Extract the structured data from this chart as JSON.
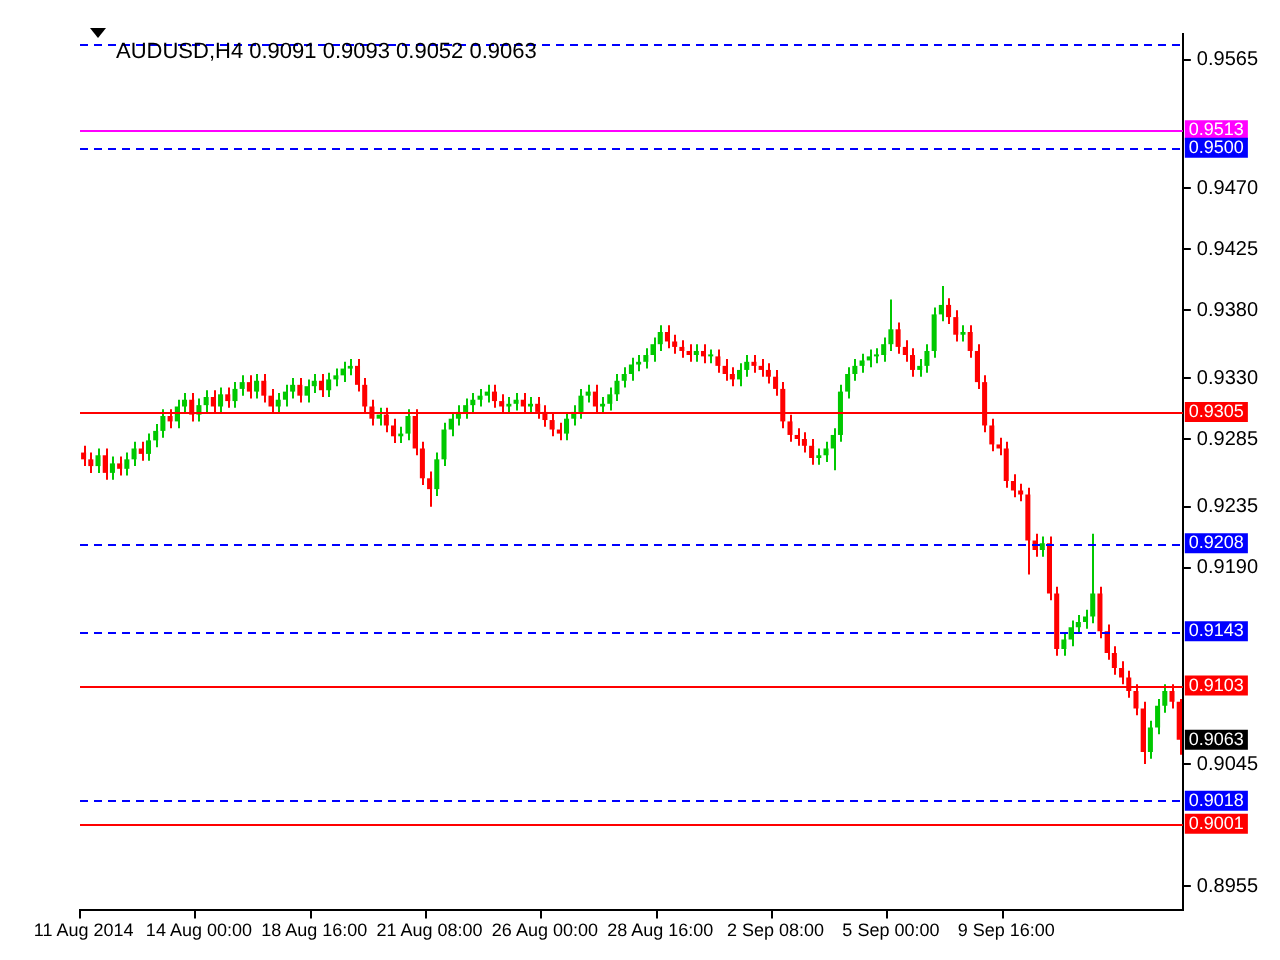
{
  "chart_data": {
    "type": "candlestick",
    "title": "AUDUSD,H4 0.9091 0.9093 0.9052 0.9063",
    "categories": [
      "11 Aug 2014",
      null,
      null,
      null,
      null,
      null,
      null,
      null,
      null,
      null,
      null,
      null,
      null,
      null,
      null,
      null,
      "14 Aug 00:00",
      null,
      null,
      null,
      null,
      null,
      null,
      null,
      null,
      null,
      null,
      null,
      null,
      null,
      null,
      null,
      "18 Aug 16:00",
      null,
      null,
      null,
      null,
      null,
      null,
      null,
      null,
      null,
      null,
      null,
      null,
      null,
      null,
      null,
      "21 Aug 08:00",
      null,
      null,
      null,
      null,
      null,
      null,
      null,
      null,
      null,
      null,
      null,
      null,
      null,
      null,
      null,
      "26 Aug 00:00",
      null,
      null,
      null,
      null,
      null,
      null,
      null,
      null,
      null,
      null,
      null,
      null,
      null,
      null,
      null,
      "28 Aug 16:00",
      null,
      null,
      null,
      null,
      null,
      null,
      null,
      null,
      null,
      null,
      null,
      null,
      null,
      null,
      null,
      "2 Sep 08:00",
      null,
      null,
      null,
      null,
      null,
      null,
      null,
      null,
      null,
      null,
      null,
      null,
      null,
      null,
      null,
      "5 Sep 00:00",
      null,
      null,
      null,
      null,
      null,
      null,
      null,
      null,
      null,
      null,
      null,
      null,
      null,
      null,
      null,
      "9 Sep 16:00",
      null,
      null,
      null,
      null,
      null,
      null,
      null,
      null,
      null,
      null,
      null,
      null,
      null,
      null,
      null,
      null,
      null,
      null,
      null,
      null,
      null,
      null,
      null,
      null
    ],
    "ohlc": [
      [
        0.9275,
        0.928,
        0.9265,
        0.927
      ],
      [
        0.927,
        0.9275,
        0.926,
        0.9265
      ],
      [
        0.9265,
        0.9278,
        0.926,
        0.9273
      ],
      [
        0.9273,
        0.9278,
        0.9255,
        0.926
      ],
      [
        0.926,
        0.9272,
        0.9255,
        0.9267
      ],
      [
        0.9267,
        0.9272,
        0.9258,
        0.9263
      ],
      [
        0.9263,
        0.9275,
        0.9258,
        0.927
      ],
      [
        0.927,
        0.9283,
        0.9265,
        0.9278
      ],
      [
        0.9278,
        0.9283,
        0.9269,
        0.9274
      ],
      [
        0.9274,
        0.9289,
        0.9269,
        0.9284
      ],
      [
        0.9284,
        0.9296,
        0.9279,
        0.9291
      ],
      [
        0.9291,
        0.9307,
        0.9286,
        0.9302
      ],
      [
        0.9302,
        0.9307,
        0.9293,
        0.9298
      ],
      [
        0.9298,
        0.9314,
        0.9293,
        0.9309
      ],
      [
        0.9309,
        0.9319,
        0.9304,
        0.9314
      ],
      [
        0.9314,
        0.9319,
        0.9298,
        0.9303
      ],
      [
        0.9303,
        0.9315,
        0.9298,
        0.931
      ],
      [
        0.931,
        0.9321,
        0.9305,
        0.9316
      ],
      [
        0.9316,
        0.9321,
        0.9304,
        0.9309
      ],
      [
        0.9309,
        0.9323,
        0.9304,
        0.9318
      ],
      [
        0.9318,
        0.9323,
        0.9308,
        0.9313
      ],
      [
        0.9313,
        0.9327,
        0.9308,
        0.9322
      ],
      [
        0.9322,
        0.9332,
        0.9317,
        0.9327
      ],
      [
        0.9327,
        0.9332,
        0.9315,
        0.932
      ],
      [
        0.932,
        0.9333,
        0.9315,
        0.9328
      ],
      [
        0.9328,
        0.9333,
        0.9312,
        0.9317
      ],
      [
        0.9317,
        0.9322,
        0.9304,
        0.9309
      ],
      [
        0.9309,
        0.9319,
        0.9304,
        0.9314
      ],
      [
        0.9314,
        0.9325,
        0.9309,
        0.932
      ],
      [
        0.932,
        0.933,
        0.9315,
        0.9325
      ],
      [
        0.9325,
        0.933,
        0.9312,
        0.9317
      ],
      [
        0.9317,
        0.9329,
        0.9312,
        0.9324
      ],
      [
        0.9324,
        0.9333,
        0.9319,
        0.9328
      ],
      [
        0.9328,
        0.9333,
        0.9316,
        0.9321
      ],
      [
        0.9321,
        0.9334,
        0.9316,
        0.9329
      ],
      [
        0.9329,
        0.9337,
        0.9324,
        0.9332
      ],
      [
        0.9332,
        0.9342,
        0.9327,
        0.9337
      ],
      [
        0.9337,
        0.9344,
        0.9332,
        0.9339
      ],
      [
        0.9339,
        0.9344,
        0.932,
        0.9325
      ],
      [
        0.9325,
        0.933,
        0.9304,
        0.9309
      ],
      [
        0.9309,
        0.9314,
        0.9295,
        0.93
      ],
      [
        0.93,
        0.9308,
        0.9295,
        0.9303
      ],
      [
        0.9303,
        0.9308,
        0.929,
        0.9295
      ],
      [
        0.9295,
        0.93,
        0.9282,
        0.9287
      ],
      [
        0.9287,
        0.9294,
        0.9282,
        0.9289
      ],
      [
        0.9289,
        0.9307,
        0.9284,
        0.9302
      ],
      [
        0.9302,
        0.9307,
        0.9273,
        0.9278
      ],
      [
        0.9278,
        0.9283,
        0.9251,
        0.9256
      ],
      [
        0.9256,
        0.9261,
        0.9235,
        0.9248
      ],
      [
        0.9248,
        0.9275,
        0.9243,
        0.927
      ],
      [
        0.927,
        0.9297,
        0.9265,
        0.9292
      ],
      [
        0.9292,
        0.9305,
        0.9287,
        0.93
      ],
      [
        0.93,
        0.931,
        0.9295,
        0.9305
      ],
      [
        0.9305,
        0.9315,
        0.93,
        0.931
      ],
      [
        0.931,
        0.9319,
        0.9305,
        0.9314
      ],
      [
        0.9314,
        0.9322,
        0.9309,
        0.9317
      ],
      [
        0.9317,
        0.9325,
        0.9312,
        0.932
      ],
      [
        0.932,
        0.9325,
        0.9308,
        0.9313
      ],
      [
        0.9313,
        0.9318,
        0.9304,
        0.9309
      ],
      [
        0.9309,
        0.9316,
        0.9304,
        0.9311
      ],
      [
        0.9311,
        0.9319,
        0.9306,
        0.9314
      ],
      [
        0.9314,
        0.9319,
        0.9304,
        0.9309
      ],
      [
        0.9309,
        0.9316,
        0.9304,
        0.9311
      ],
      [
        0.9311,
        0.9316,
        0.93,
        0.9305
      ],
      [
        0.9305,
        0.931,
        0.9294,
        0.9299
      ],
      [
        0.9299,
        0.9304,
        0.9287,
        0.9292
      ],
      [
        0.9292,
        0.9297,
        0.9284,
        0.9289
      ],
      [
        0.9289,
        0.9305,
        0.9284,
        0.93
      ],
      [
        0.93,
        0.931,
        0.9295,
        0.9305
      ],
      [
        0.9305,
        0.9322,
        0.93,
        0.9317
      ],
      [
        0.9317,
        0.9325,
        0.9312,
        0.932
      ],
      [
        0.932,
        0.9325,
        0.9304,
        0.9309
      ],
      [
        0.9309,
        0.9316,
        0.9304,
        0.9311
      ],
      [
        0.9311,
        0.9323,
        0.9306,
        0.9318
      ],
      [
        0.9318,
        0.9333,
        0.9313,
        0.9328
      ],
      [
        0.9328,
        0.9338,
        0.9323,
        0.9333
      ],
      [
        0.9333,
        0.9345,
        0.9328,
        0.934
      ],
      [
        0.934,
        0.9347,
        0.9335,
        0.9342
      ],
      [
        0.9342,
        0.9352,
        0.9337,
        0.9347
      ],
      [
        0.9347,
        0.936,
        0.9342,
        0.9355
      ],
      [
        0.9355,
        0.9369,
        0.935,
        0.9364
      ],
      [
        0.9364,
        0.9369,
        0.9352,
        0.9357
      ],
      [
        0.9357,
        0.9362,
        0.9348,
        0.9353
      ],
      [
        0.9353,
        0.9358,
        0.9345,
        0.935
      ],
      [
        0.935,
        0.9355,
        0.9342,
        0.9347
      ],
      [
        0.9347,
        0.9355,
        0.9342,
        0.935
      ],
      [
        0.935,
        0.9355,
        0.9341,
        0.9346
      ],
      [
        0.9346,
        0.9351,
        0.9341,
        0.9346
      ],
      [
        0.9346,
        0.9351,
        0.9334,
        0.9339
      ],
      [
        0.9339,
        0.9344,
        0.9328,
        0.9333
      ],
      [
        0.9333,
        0.9338,
        0.9324,
        0.9329
      ],
      [
        0.9329,
        0.9341,
        0.9324,
        0.9336
      ],
      [
        0.9336,
        0.9347,
        0.9331,
        0.9342
      ],
      [
        0.9342,
        0.9347,
        0.9334,
        0.9339
      ],
      [
        0.9339,
        0.9344,
        0.9331,
        0.9336
      ],
      [
        0.9336,
        0.9341,
        0.9326,
        0.9331
      ],
      [
        0.9331,
        0.9336,
        0.9317,
        0.9322
      ],
      [
        0.9322,
        0.9327,
        0.9293,
        0.9298
      ],
      [
        0.9298,
        0.9303,
        0.9283,
        0.9288
      ],
      [
        0.9288,
        0.9293,
        0.928,
        0.9285
      ],
      [
        0.9285,
        0.929,
        0.9275,
        0.928
      ],
      [
        0.928,
        0.9285,
        0.9266,
        0.9271
      ],
      [
        0.9271,
        0.9278,
        0.9266,
        0.9273
      ],
      [
        0.9273,
        0.9283,
        0.9268,
        0.9278
      ],
      [
        0.9278,
        0.9293,
        0.9262,
        0.9288
      ],
      [
        0.9288,
        0.9325,
        0.9283,
        0.932
      ],
      [
        0.932,
        0.9338,
        0.9315,
        0.9333
      ],
      [
        0.9333,
        0.9344,
        0.9328,
        0.9339
      ],
      [
        0.9339,
        0.9348,
        0.9334,
        0.9343
      ],
      [
        0.9343,
        0.9351,
        0.9338,
        0.9346
      ],
      [
        0.9346,
        0.9352,
        0.9341,
        0.9347
      ],
      [
        0.9347,
        0.936,
        0.9342,
        0.9355
      ],
      [
        0.9355,
        0.9388,
        0.935,
        0.9366
      ],
      [
        0.9366,
        0.9371,
        0.9348,
        0.9353
      ],
      [
        0.9353,
        0.9358,
        0.9342,
        0.9347
      ],
      [
        0.9347,
        0.9352,
        0.9331,
        0.9336
      ],
      [
        0.9336,
        0.9344,
        0.9331,
        0.9339
      ],
      [
        0.9339,
        0.9355,
        0.9334,
        0.935
      ],
      [
        0.935,
        0.9382,
        0.9345,
        0.9377
      ],
      [
        0.9377,
        0.9398,
        0.9372,
        0.9384
      ],
      [
        0.9384,
        0.9389,
        0.937,
        0.9375
      ],
      [
        0.9375,
        0.938,
        0.9357,
        0.9362
      ],
      [
        0.9362,
        0.9369,
        0.9357,
        0.9364
      ],
      [
        0.9364,
        0.9369,
        0.9345,
        0.935
      ],
      [
        0.935,
        0.9355,
        0.9322,
        0.9327
      ],
      [
        0.9327,
        0.9332,
        0.929,
        0.9295
      ],
      [
        0.9295,
        0.93,
        0.9276,
        0.9281
      ],
      [
        0.9281,
        0.9286,
        0.9273,
        0.9278
      ],
      [
        0.9278,
        0.9283,
        0.9249,
        0.9254
      ],
      [
        0.9254,
        0.9259,
        0.9242,
        0.9247
      ],
      [
        0.9247,
        0.9252,
        0.9239,
        0.9244
      ],
      [
        0.9244,
        0.9249,
        0.9185,
        0.921
      ],
      [
        0.921,
        0.9215,
        0.9198,
        0.9203
      ],
      [
        0.9203,
        0.9213,
        0.9198,
        0.9208
      ],
      [
        0.9208,
        0.9213,
        0.9166,
        0.9171
      ],
      [
        0.9171,
        0.9176,
        0.9125,
        0.913
      ],
      [
        0.913,
        0.9142,
        0.9125,
        0.9137
      ],
      [
        0.9137,
        0.9151,
        0.9132,
        0.9146
      ],
      [
        0.9146,
        0.9155,
        0.9141,
        0.915
      ],
      [
        0.915,
        0.9159,
        0.9145,
        0.9154
      ],
      [
        0.9154,
        0.9215,
        0.9149,
        0.9171
      ],
      [
        0.9171,
        0.9176,
        0.9138,
        0.9143
      ],
      [
        0.9143,
        0.9148,
        0.9122,
        0.9127
      ],
      [
        0.9127,
        0.9132,
        0.9111,
        0.9116
      ],
      [
        0.9116,
        0.9121,
        0.9104,
        0.9109
      ],
      [
        0.9109,
        0.9114,
        0.9094,
        0.9099
      ],
      [
        0.9099,
        0.9104,
        0.9081,
        0.9086
      ],
      [
        0.9086,
        0.9091,
        0.9045,
        0.9054
      ],
      [
        0.9054,
        0.9077,
        0.9049,
        0.9072
      ],
      [
        0.9072,
        0.9093,
        0.9067,
        0.9088
      ],
      [
        0.9088,
        0.9104,
        0.9083,
        0.9099
      ],
      [
        0.9099,
        0.9104,
        0.9086,
        0.9091
      ],
      [
        0.9091,
        0.9093,
        0.9052,
        0.9063
      ]
    ],
    "ylim": [
      0.8937,
      0.9584
    ],
    "yticks": [
      0.9565,
      {
        "value": 0.947,
        "label": "0.9470"
      },
      0.9425,
      {
        "value": 0.938,
        "label": "0.9380"
      },
      {
        "value": 0.933,
        "label": "0.9330"
      },
      0.9285,
      0.9235,
      {
        "value": 0.919,
        "label": "0.9190"
      },
      0.9045,
      0.8955
    ],
    "ref_lines": [
      {
        "axis": "y",
        "value": 0.9577,
        "color": "#0000ff",
        "line_style": "dashed"
      },
      {
        "axis": "y",
        "value": 0.9513,
        "label": "0.9513",
        "color": "#ff00ff",
        "line_style": "solid"
      },
      {
        "axis": "y",
        "value": 0.95,
        "label": "0.9500",
        "color": "#0000ff",
        "line_style": "dashed"
      },
      {
        "axis": "y",
        "value": 0.9305,
        "label": "0.9305",
        "color": "#ff0000",
        "line_style": "solid"
      },
      {
        "axis": "y",
        "value": 0.9208,
        "label": "0.9208",
        "color": "#0000ff",
        "line_style": "dashed"
      },
      {
        "axis": "y",
        "value": 0.9143,
        "label": "0.9143",
        "color": "#0000ff",
        "line_style": "dashed"
      },
      {
        "axis": "y",
        "value": 0.9103,
        "label": "0.9103",
        "color": "#ff0000",
        "line_style": "solid"
      },
      {
        "axis": "y",
        "value": 0.9018,
        "label": "0.9018",
        "color": "#0000ff",
        "line_style": "dashed"
      },
      {
        "axis": "y",
        "value": 0.9001,
        "label": "0.9001",
        "color": "#ff0000",
        "line_style": "solid"
      }
    ],
    "annotations": [
      "0.9063"
    ]
  }
}
